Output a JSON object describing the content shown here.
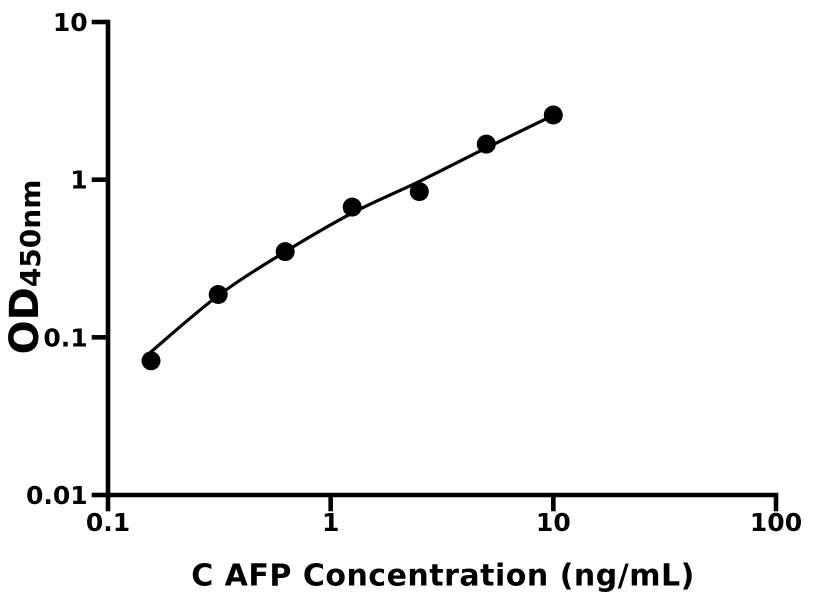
{
  "figure": {
    "background_color": "#ffffff",
    "foreground_color": "#000000"
  },
  "chart_data": {
    "type": "scatter",
    "title": "",
    "xlabel": "C AFP Concentration (ng/mL)",
    "ylabel_main": "OD",
    "ylabel_subscript": "450nm",
    "xscale": "log",
    "yscale": "log",
    "xlim": [
      0.1,
      100
    ],
    "ylim": [
      0.01,
      10
    ],
    "grid": false,
    "legend": "none",
    "x_ticks": {
      "values": [
        0.1,
        1,
        10,
        100
      ],
      "labels": [
        "0.1",
        "1",
        "10",
        "100"
      ]
    },
    "y_ticks": {
      "values": [
        10,
        1,
        0.1,
        0.01
      ],
      "labels": [
        "10",
        "1",
        "0.1",
        "0.01"
      ]
    },
    "series": [
      {
        "name": "standard-data-points",
        "type": "scatter",
        "marker": "filled-circle",
        "color": "#000000",
        "x": [
          0.156,
          0.3125,
          0.625,
          1.25,
          2.5,
          5,
          10
        ],
        "y": [
          0.071,
          0.187,
          0.35,
          0.67,
          0.84,
          1.68,
          2.57
        ]
      },
      {
        "name": "fit-curve",
        "type": "line",
        "color": "#000000",
        "x": [
          0.156,
          0.3125,
          0.625,
          1.25,
          2.5,
          5,
          10
        ],
        "y": [
          0.081,
          0.184,
          0.349,
          0.614,
          0.975,
          1.59,
          2.56
        ]
      }
    ]
  }
}
